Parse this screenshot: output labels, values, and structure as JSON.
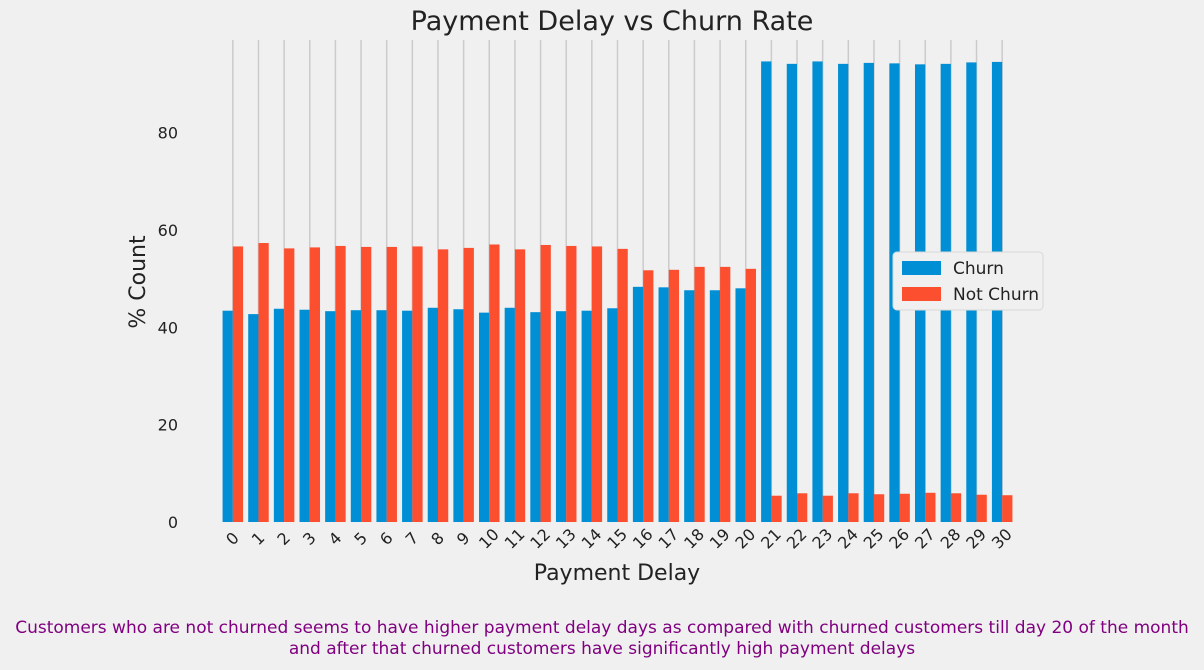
{
  "chart_data": {
    "type": "bar",
    "title": "Payment Delay vs Churn Rate",
    "xlabel": "Payment Delay",
    "ylabel": "% Count",
    "ylim": [
      0,
      99
    ],
    "yticks": [
      0,
      20,
      40,
      60,
      80
    ],
    "grid": "vertical",
    "legend_position": "center-right",
    "categories": [
      "0",
      "1",
      "2",
      "3",
      "4",
      "5",
      "6",
      "7",
      "8",
      "9",
      "10",
      "11",
      "12",
      "13",
      "14",
      "15",
      "16",
      "17",
      "18",
      "19",
      "20",
      "21",
      "22",
      "23",
      "24",
      "25",
      "26",
      "27",
      "28",
      "29",
      "30"
    ],
    "series": [
      {
        "name": "Churn",
        "color": "#008fd5",
        "values": [
          43.4,
          42.7,
          43.8,
          43.6,
          43.3,
          43.5,
          43.5,
          43.4,
          44.0,
          43.7,
          43.0,
          44.0,
          43.1,
          43.3,
          43.4,
          43.9,
          48.3,
          48.2,
          47.6,
          47.6,
          48.0,
          94.6,
          94.1,
          94.6,
          94.1,
          94.3,
          94.2,
          94.0,
          94.1,
          94.4,
          94.5
        ]
      },
      {
        "name": "Not Churn",
        "color": "#fc4f30",
        "values": [
          56.6,
          57.3,
          56.2,
          56.4,
          56.7,
          56.5,
          56.5,
          56.6,
          56.0,
          56.3,
          57.0,
          56.0,
          56.9,
          56.7,
          56.6,
          56.1,
          51.7,
          51.8,
          52.4,
          52.4,
          52.0,
          5.4,
          5.9,
          5.4,
          5.9,
          5.7,
          5.8,
          6.0,
          5.9,
          5.6,
          5.5
        ]
      }
    ]
  },
  "caption": {
    "line1": "Customers who are not churned seems to have higher payment delay days as compared with churned customers till day 20 of the month",
    "line2": "and after that churned customers have significantly high payment delays"
  }
}
